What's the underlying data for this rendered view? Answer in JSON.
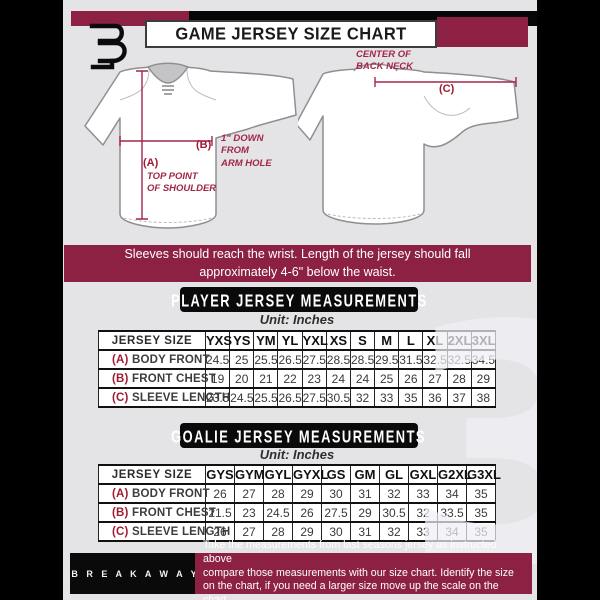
{
  "header": {
    "title": "GAME JERSEY SIZE CHART"
  },
  "diagrams": {
    "front": {
      "a_label": "(A)",
      "a_note": "TOP POINT\nOF SHOULDER",
      "b_label": "(B)",
      "b_note": "1\" DOWN\nFROM\nARM HOLE"
    },
    "back": {
      "c_label": "(C)",
      "c_note": "CENTER OF\nBACK NECK"
    }
  },
  "note_banner": "Sleeves should reach the wrist. Length of the jersey should fall\napproximately 4-6\" below the waist.",
  "player_section": {
    "heading": "PLAYER JERSEY MEASUREMENTS",
    "unit": "Unit: Inches",
    "table": {
      "size_header": "JERSEY SIZE",
      "sizes": [
        "YXS",
        "YS",
        "YM",
        "YL",
        "YXL",
        "XS",
        "S",
        "M",
        "L",
        "XL",
        "2XL",
        "3XL"
      ],
      "rows": [
        {
          "prefix": "(A)",
          "label": "BODY FRONT",
          "values": [
            "24.5",
            "25",
            "25.5",
            "26.5",
            "27.5",
            "28.5",
            "28.5",
            "29.5",
            "31.5",
            "32.5",
            "32.5",
            "34.5"
          ]
        },
        {
          "prefix": "(B)",
          "label": "FRONT CHEST",
          "values": [
            "19",
            "20",
            "21",
            "22",
            "23",
            "24",
            "24",
            "25",
            "26",
            "27",
            "28",
            "29"
          ]
        },
        {
          "prefix": "(C)",
          "label": "SLEEVE LENGTH",
          "values": [
            "23.5",
            "24.5",
            "25.5",
            "26.5",
            "27.5",
            "30.5",
            "32",
            "33",
            "35",
            "36",
            "37",
            "38"
          ]
        }
      ]
    }
  },
  "goalie_section": {
    "heading": "GOALIE JERSEY MEASUREMENTS",
    "unit": "Unit: Inches",
    "table": {
      "size_header": "JERSEY SIZE",
      "sizes": [
        "GYS",
        "GYM",
        "GYL",
        "GYXL",
        "GS",
        "GM",
        "GL",
        "GXL",
        "G2XL",
        "G3XL"
      ],
      "rows": [
        {
          "prefix": "(A)",
          "label": "BODY FRONT",
          "values": [
            "26",
            "27",
            "28",
            "29",
            "30",
            "31",
            "32",
            "33",
            "34",
            "35"
          ]
        },
        {
          "prefix": "(B)",
          "label": "FRONT CHEST",
          "values": [
            "21.5",
            "23",
            "24.5",
            "26",
            "27.5",
            "29",
            "30.5",
            "32",
            "33.5",
            "35"
          ]
        },
        {
          "prefix": "(C)",
          "label": "SLEEVE LENGTH",
          "values": [
            "26",
            "27",
            "28",
            "29",
            "30",
            "31",
            "32",
            "33",
            "34",
            "35"
          ]
        }
      ]
    }
  },
  "footer": {
    "brand": "B R E A K A W A Y",
    "note": "Take the measurements from last seasons jersey as instructed above\ncompare those measurements  with our size chart. Identify the size\non the chart, if you need a larger size move up the scale on the chart"
  },
  "watermark": "3",
  "colors": {
    "maroon": "#8d2144",
    "annotation_red": "#a32646",
    "prefix_red": "#a01a33",
    "background_gray": "#e4e4e7",
    "band_black": "#000000"
  }
}
